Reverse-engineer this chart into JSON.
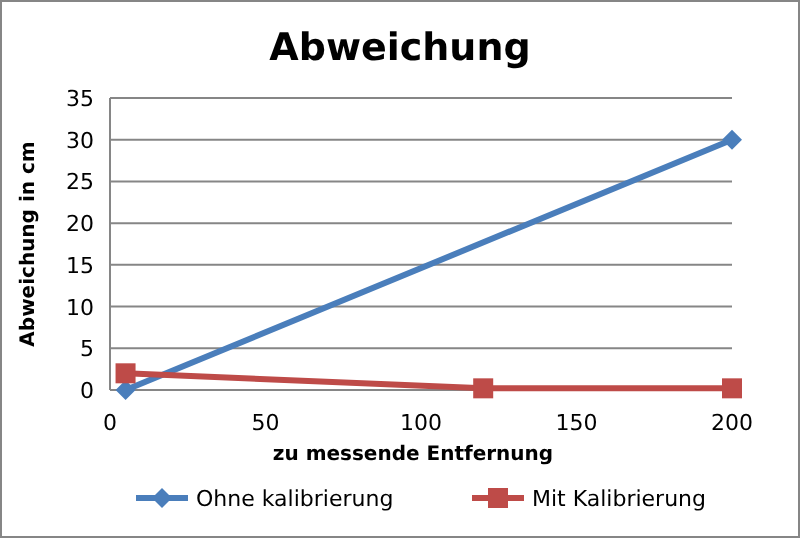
{
  "chart_data": {
    "type": "line",
    "title": "Abweichung",
    "xlabel": "zu messende Entfernung",
    "ylabel": "Abweichung in cm",
    "xlim": [
      0,
      200
    ],
    "xticks": [
      0,
      50,
      100,
      150,
      200
    ],
    "ylim": [
      0,
      35
    ],
    "yticks": [
      0,
      5,
      10,
      15,
      20,
      25,
      30,
      35
    ],
    "grid": "y",
    "legend": "bottom",
    "series": [
      {
        "name": "Ohne kalibrierung",
        "color": "#4a7ebb",
        "marker": "diamond",
        "x": [
          5,
          200
        ],
        "values": [
          0,
          30
        ]
      },
      {
        "name": "Mit Kalibrierung",
        "color": "#be4b48",
        "marker": "square",
        "x": [
          5,
          120,
          200
        ],
        "values": [
          2,
          0.2,
          0.2
        ]
      }
    ]
  }
}
